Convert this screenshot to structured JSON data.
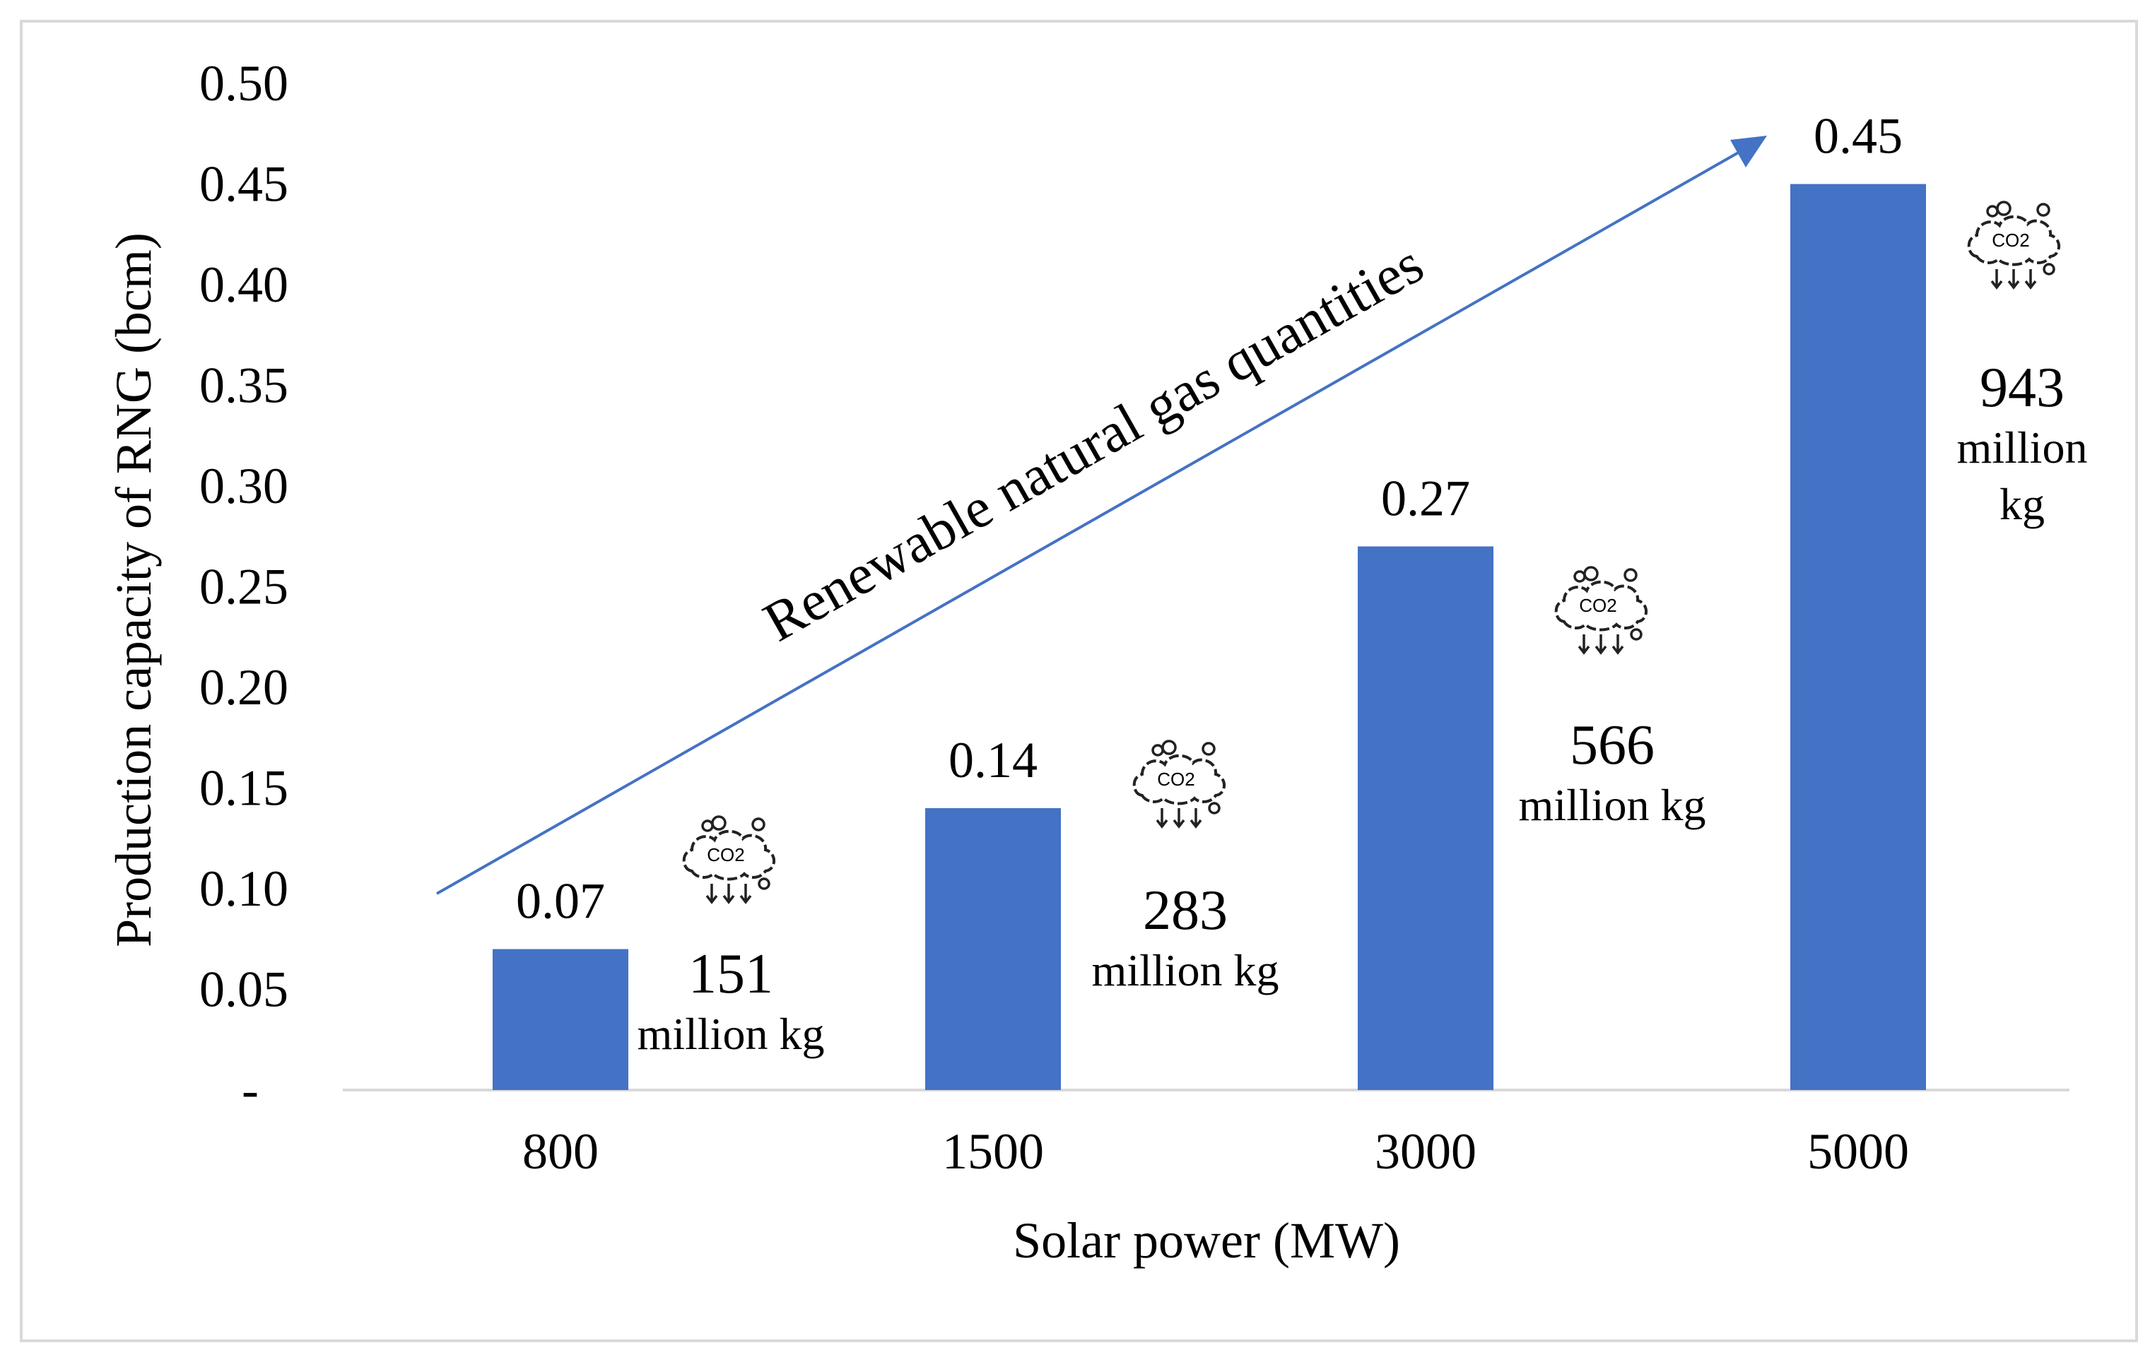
{
  "chart_data": {
    "type": "bar",
    "xlabel": "Solar power (MW)",
    "ylabel": "Production capacity of RNG (bcm)",
    "categories": [
      "800",
      "1500",
      "3000",
      "5000"
    ],
    "values": [
      0.07,
      0.14,
      0.27,
      0.45
    ],
    "ylim": [
      0,
      0.5
    ],
    "yticks": [
      "-",
      "0.05",
      "0.10",
      "0.15",
      "0.20",
      "0.25",
      "0.30",
      "0.35",
      "0.40",
      "0.45",
      "0.50"
    ],
    "grid": false,
    "bar_color": "#4472C4",
    "arrow_color": "#4472C4",
    "arrow_label": "Renewable natural gas quantities",
    "co2_icon_text": "CO2",
    "annotations": [
      {
        "number": "151",
        "unit": "million kg"
      },
      {
        "number": "283",
        "unit": "million kg"
      },
      {
        "number": "566",
        "unit": "million kg"
      },
      {
        "number": "943",
        "unit": "million kg",
        "unit_lines": [
          "million",
          "kg"
        ]
      }
    ]
  }
}
